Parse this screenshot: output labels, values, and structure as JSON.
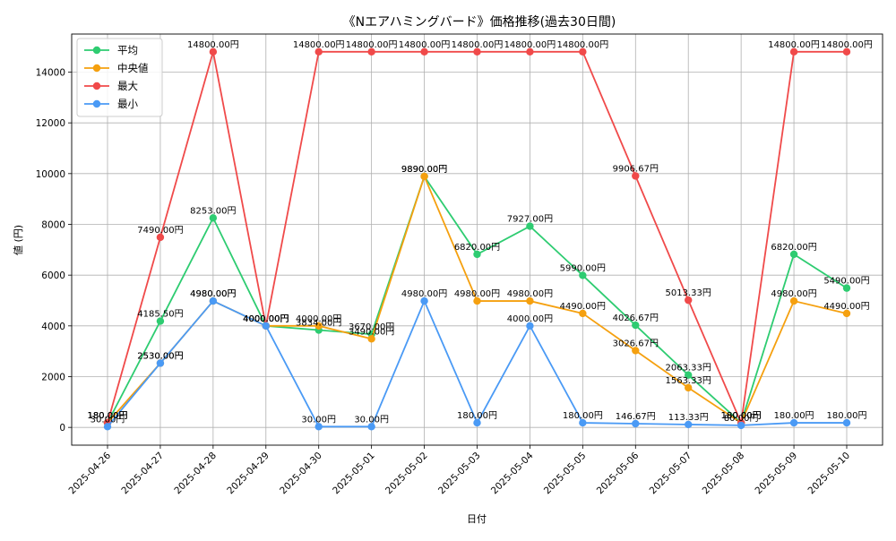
{
  "chart_data": {
    "type": "line",
    "title": "《Nエアハミングバード》価格推移(過去30日間)",
    "xlabel": "日付",
    "ylabel": "値 (円)",
    "categories": [
      "2025-04-26",
      "2025-04-27",
      "2025-04-28",
      "2025-04-29",
      "2025-04-30",
      "2025-05-01",
      "2025-05-02",
      "2025-05-03",
      "2025-05-04",
      "2025-05-05",
      "2025-05-06",
      "2025-05-07",
      "2025-05-08",
      "2025-05-09",
      "2025-05-10"
    ],
    "ylim": [
      -700,
      15500
    ],
    "yticks": [
      0,
      2000,
      4000,
      6000,
      8000,
      10000,
      12000,
      14000
    ],
    "grid": true,
    "legend_position": "top-left",
    "label_suffix": "円",
    "series": [
      {
        "name": "平均",
        "color": "#2ecc71",
        "values": [
          180,
          4185.5,
          8253,
          4000,
          3834,
          3670,
          9890,
          6820,
          7927,
          5990,
          4026.67,
          2063.33,
          180,
          6820,
          5490
        ]
      },
      {
        "name": "中央値",
        "color": "#f5a00f",
        "values": [
          180,
          2530,
          4980,
          4000,
          4000,
          3490,
          9890,
          4980,
          4980,
          4490,
          3026.67,
          1563.33,
          180,
          4980,
          4490
        ]
      },
      {
        "name": "最大",
        "color": "#f04a4a",
        "values": [
          180,
          7490,
          14800,
          4000,
          14800,
          14800,
          14800,
          14800,
          14800,
          14800,
          9906.67,
          5013.33,
          180,
          14800,
          14800
        ]
      },
      {
        "name": "最小",
        "color": "#4a9af5",
        "values": [
          30,
          2530,
          4980,
          4000,
          30,
          30,
          4980,
          180,
          4000,
          180,
          146.67,
          113.33,
          80,
          180,
          180
        ]
      }
    ]
  }
}
